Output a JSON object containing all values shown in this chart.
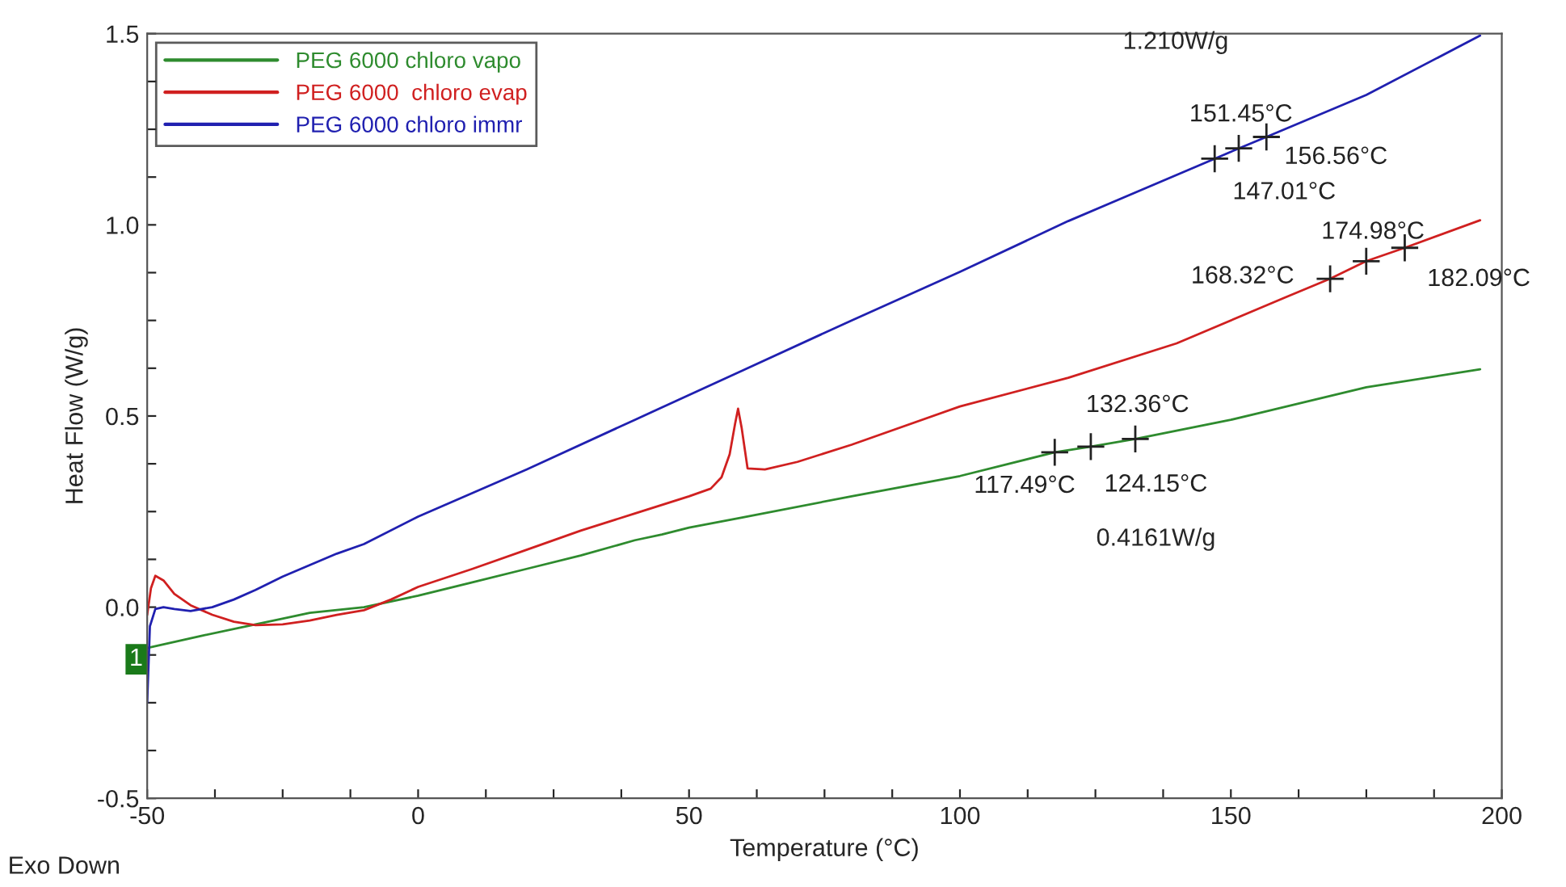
{
  "chart_data": {
    "type": "line",
    "xlabel": "Temperature (°C)",
    "ylabel": "Heat Flow (W/g)",
    "xlim": [
      -50,
      200
    ],
    "ylim": [
      -0.5,
      1.5
    ],
    "xticks": [
      -50,
      {
        "value": -37.5,
        "label": null
      },
      {
        "value": -25,
        "label": null
      },
      {
        "value": -12.5,
        "label": null
      },
      0,
      {
        "value": 12.5,
        "label": null
      },
      {
        "value": 25,
        "label": null
      },
      {
        "value": 37.5,
        "label": null
      },
      50,
      {
        "value": 62.5,
        "label": null
      },
      {
        "value": 75,
        "label": null
      },
      {
        "value": 87.5,
        "label": null
      },
      100,
      {
        "value": 112.5,
        "label": null
      },
      {
        "value": 125,
        "label": null
      },
      {
        "value": 137.5,
        "label": null
      },
      150,
      {
        "value": 162.5,
        "label": null
      },
      {
        "value": 175,
        "label": null
      },
      {
        "value": 187.5,
        "label": null
      },
      200
    ],
    "yticks": [
      -0.5,
      {
        "value": -0.375,
        "label": null
      },
      {
        "value": -0.25,
        "label": null
      },
      {
        "value": -0.125,
        "label": null
      },
      {
        "value": 0,
        "label": "0.0"
      },
      {
        "value": 0.125,
        "label": null
      },
      {
        "value": 0.25,
        "label": null
      },
      {
        "value": 0.375,
        "label": null
      },
      0.5,
      {
        "value": 0.625,
        "label": null
      },
      {
        "value": 0.75,
        "label": null
      },
      {
        "value": 0.875,
        "label": null
      },
      {
        "value": 1,
        "label": "1.0"
      },
      {
        "value": 1.125,
        "label": null
      },
      {
        "value": 1.25,
        "label": null
      },
      {
        "value": 1.375,
        "label": null
      },
      1.5
    ],
    "grid": false,
    "legend": "top left",
    "series": [
      {
        "name": "PEG 6000 chloro vapo",
        "color": "#2e8b2e",
        "x": [
          -50,
          -40,
          -30,
          -20,
          -10,
          0,
          10,
          20,
          30,
          40,
          45,
          50,
          60,
          80,
          100,
          117.49,
          124.15,
          132.36,
          150,
          175,
          196
        ],
        "values": [
          -0.107,
          -0.075,
          -0.045,
          -0.015,
          0.0,
          0.03,
          0.065,
          0.1,
          0.135,
          0.175,
          0.19,
          0.208,
          0.235,
          0.29,
          0.343,
          0.405,
          0.42,
          0.44,
          0.49,
          0.575,
          0.622
        ]
      },
      {
        "name": "PEG 6000  chloro evap",
        "color": "#d02020",
        "x": [
          -50,
          -49.3,
          -48.5,
          -47,
          -45,
          -42,
          -38,
          -34,
          -30,
          -25,
          -20,
          -15,
          -10,
          -5,
          0,
          10,
          20,
          30,
          40,
          50,
          54,
          56,
          57.5,
          58.5,
          59.05,
          59.7,
          60.8,
          64,
          70,
          80,
          100,
          120,
          140,
          160,
          168.32,
          174.98,
          182.09,
          196
        ],
        "values": [
          -0.02,
          0.05,
          0.082,
          0.07,
          0.035,
          0.005,
          -0.02,
          -0.038,
          -0.047,
          -0.045,
          -0.035,
          -0.02,
          -0.008,
          0.02,
          0.053,
          0.1,
          0.15,
          0.2,
          0.245,
          0.29,
          0.31,
          0.34,
          0.4,
          0.48,
          0.519,
          0.47,
          0.363,
          0.36,
          0.38,
          0.425,
          0.525,
          0.6,
          0.69,
          0.81,
          0.859,
          0.905,
          0.94,
          1.012
        ]
      },
      {
        "name": "PEG 6000 chloro immr",
        "color": "#2020b0",
        "x": [
          -50,
          -49.5,
          -48.5,
          -47,
          -45,
          -42,
          -38,
          -34,
          -30,
          -25,
          -20,
          -15,
          -10,
          0,
          20,
          40,
          60,
          80,
          100,
          120,
          147.01,
          151.45,
          156.56,
          175,
          196
        ],
        "values": [
          -0.25,
          -0.05,
          -0.005,
          0.0,
          -0.005,
          -0.01,
          0.0,
          0.02,
          0.045,
          0.08,
          0.11,
          0.14,
          0.165,
          0.237,
          0.36,
          0.49,
          0.62,
          0.75,
          0.877,
          1.01,
          1.173,
          1.2,
          1.23,
          1.34,
          1.495
        ]
      }
    ],
    "annotations": [
      "1.210W/g",
      {
        "text": "151.45°C",
        "x": 151.45,
        "y": 1.2
      },
      {
        "text": "156.56°C",
        "x": 156.56,
        "y": 1.23
      },
      {
        "text": "147.01°C",
        "x": 147.01,
        "y": 1.173
      },
      {
        "text": "174.98°C",
        "x": 174.98,
        "y": 0.905
      },
      {
        "text": "168.32°C",
        "x": 168.32,
        "y": 0.859
      },
      {
        "text": "182.09°C",
        "x": 182.09,
        "y": 0.94
      },
      {
        "text": "132.36°C",
        "x": 132.36,
        "y": 0.44
      },
      {
        "text": "117.49°C",
        "x": 117.49,
        "y": 0.405
      },
      {
        "text": "124.15°C",
        "x": 124.15,
        "y": 0.42
      },
      "0.4161W/g",
      {
        "text": "1",
        "x": -50,
        "y": -0.107
      },
      "Exo Down"
    ]
  }
}
